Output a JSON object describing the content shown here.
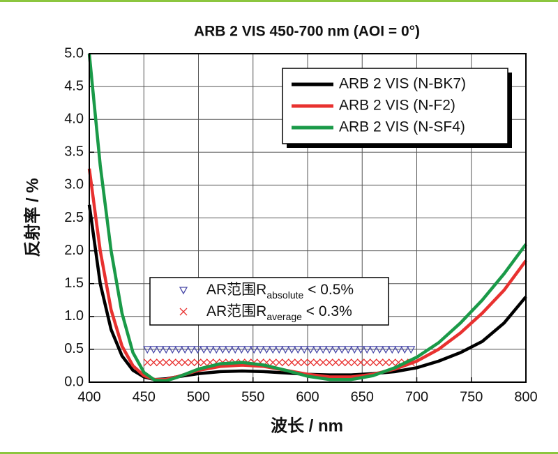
{
  "chart_data": {
    "type": "line",
    "title": "ARB 2 VIS 450-700 nm (AOI = 0°)",
    "xlabel": "波长 / nm",
    "ylabel": "反射率 / %",
    "x": [
      400,
      410,
      420,
      430,
      440,
      450,
      460,
      470,
      480,
      500,
      520,
      540,
      560,
      580,
      600,
      620,
      640,
      660,
      680,
      700,
      720,
      740,
      760,
      780,
      800
    ],
    "series": [
      {
        "name": "ARB 2 VIS (N-BK7)",
        "color": "#000000",
        "values": [
          2.7,
          1.5,
          0.8,
          0.4,
          0.18,
          0.08,
          0.04,
          0.05,
          0.08,
          0.13,
          0.16,
          0.17,
          0.16,
          0.14,
          0.12,
          0.11,
          0.11,
          0.13,
          0.16,
          0.22,
          0.32,
          0.45,
          0.62,
          0.9,
          1.3
        ]
      },
      {
        "name": "ARB 2 VIS (N-F2)",
        "color": "#e8312f",
        "values": [
          3.25,
          2.0,
          1.1,
          0.55,
          0.25,
          0.1,
          0.04,
          0.04,
          0.08,
          0.18,
          0.24,
          0.26,
          0.24,
          0.18,
          0.12,
          0.08,
          0.08,
          0.12,
          0.2,
          0.32,
          0.5,
          0.75,
          1.05,
          1.4,
          1.85
        ]
      },
      {
        "name": "ARB 2 VIS (N-SF4)",
        "color": "#1a9a48",
        "values": [
          5.0,
          3.3,
          2.0,
          1.05,
          0.45,
          0.15,
          0.03,
          0.02,
          0.07,
          0.2,
          0.28,
          0.3,
          0.26,
          0.18,
          0.09,
          0.04,
          0.04,
          0.1,
          0.22,
          0.38,
          0.6,
          0.9,
          1.25,
          1.65,
          2.1
        ]
      }
    ],
    "markers": [
      {
        "marker": "triangle",
        "color": "#4a4aa8",
        "xrange": [
          450,
          700
        ],
        "value": 0.5,
        "label": "AR范围R",
        "sub": "absolute",
        "suffix": " < 0.5%"
      },
      {
        "marker": "cross",
        "color": "#e8312f",
        "xrange": [
          450,
          700
        ],
        "value": 0.3,
        "label": "AR范围R",
        "sub": "average",
        "suffix": " < 0.3%"
      }
    ],
    "xlim": [
      400,
      800
    ],
    "xticks": [
      400,
      450,
      500,
      550,
      600,
      650,
      700,
      750,
      800
    ],
    "ylim": [
      0,
      5
    ],
    "yticks": [
      {
        "value": 0,
        "label": "0.0"
      },
      {
        "value": 0.5,
        "label": "0.5"
      },
      {
        "value": 1,
        "label": "1.0"
      },
      {
        "value": 1.5,
        "label": "1.5"
      },
      {
        "value": 2,
        "label": "2.0"
      },
      {
        "value": 2.5,
        "label": "2.5"
      },
      {
        "value": 3,
        "label": "3.0"
      },
      {
        "value": 3.5,
        "label": "3.5"
      },
      {
        "value": 4,
        "label": "4.0"
      },
      {
        "value": 4.5,
        "label": "4.5"
      },
      {
        "value": 5,
        "label": "5.0"
      }
    ],
    "grid": true
  }
}
